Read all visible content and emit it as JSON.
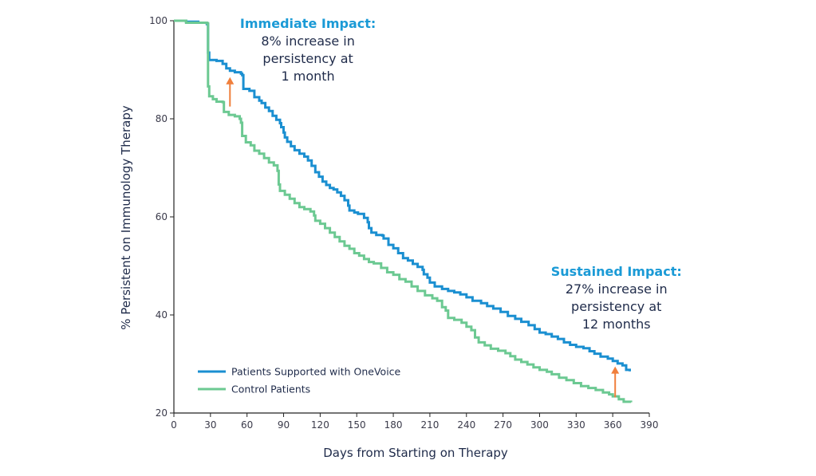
{
  "chart_data": {
    "type": "line",
    "title": "",
    "xlabel": "Days from Starting on Therapy",
    "ylabel": "% Persistent on Immunology Therapy",
    "xlim": [
      0,
      390
    ],
    "ylim": [
      20,
      100
    ],
    "xticks": [
      0,
      30,
      60,
      90,
      120,
      150,
      180,
      210,
      240,
      270,
      300,
      330,
      360,
      390
    ],
    "yticks": [
      20,
      40,
      60,
      80,
      100
    ],
    "grid": false,
    "legend_position": "bottom-left",
    "series": [
      {
        "name": "Patients Supported with OneVoice",
        "color": "#1a8fd1",
        "step": true,
        "points": [
          [
            0,
            100
          ],
          [
            10,
            99.8
          ],
          [
            20,
            99.6
          ],
          [
            27,
            99.3
          ],
          [
            28,
            93.5
          ],
          [
            29,
            92
          ],
          [
            35,
            91.8
          ],
          [
            40,
            91.2
          ],
          [
            43,
            90.3
          ],
          [
            46,
            89.8
          ],
          [
            50,
            89.5
          ],
          [
            55,
            89.2
          ],
          [
            56,
            88.9
          ],
          [
            57,
            86.1
          ],
          [
            62,
            85.7
          ],
          [
            66,
            84.4
          ],
          [
            70,
            83.7
          ],
          [
            72,
            83.2
          ],
          [
            75,
            82.3
          ],
          [
            78,
            81.6
          ],
          [
            81,
            80.6
          ],
          [
            84,
            79.8
          ],
          [
            87,
            79.1
          ],
          [
            88,
            78.3
          ],
          [
            90,
            77.2
          ],
          [
            91,
            76.2
          ],
          [
            93,
            75.3
          ],
          [
            96,
            74.4
          ],
          [
            99,
            73.6
          ],
          [
            103,
            72.9
          ],
          [
            107,
            72.3
          ],
          [
            110,
            71.5
          ],
          [
            113,
            70.4
          ],
          [
            116,
            69.1
          ],
          [
            119,
            68.2
          ],
          [
            122,
            67.2
          ],
          [
            125,
            66.5
          ],
          [
            128,
            65.9
          ],
          [
            131,
            65.6
          ],
          [
            134,
            65
          ],
          [
            137,
            64.3
          ],
          [
            140,
            63.4
          ],
          [
            143,
            62.3
          ],
          [
            144,
            61.3
          ],
          [
            148,
            60.9
          ],
          [
            151,
            60.6
          ],
          [
            156,
            59.8
          ],
          [
            159,
            58.9
          ],
          [
            160,
            57.7
          ],
          [
            162,
            56.8
          ],
          [
            166,
            56.3
          ],
          [
            171,
            56.2
          ],
          [
            172,
            55.6
          ],
          [
            176,
            54.3
          ],
          [
            180,
            53.6
          ],
          [
            184,
            52.6
          ],
          [
            188,
            51.6
          ],
          [
            192,
            51.1
          ],
          [
            196,
            50.4
          ],
          [
            200,
            49.8
          ],
          [
            204,
            49.2
          ],
          [
            205,
            48.3
          ],
          [
            208,
            47.6
          ],
          [
            210,
            46.6
          ],
          [
            214,
            45.8
          ],
          [
            220,
            45.3
          ],
          [
            225,
            44.9
          ],
          [
            230,
            44.6
          ],
          [
            235,
            44.2
          ],
          [
            240,
            43.6
          ],
          [
            245,
            42.9
          ],
          [
            252,
            42.4
          ],
          [
            257,
            41.8
          ],
          [
            262,
            41.3
          ],
          [
            268,
            40.6
          ],
          [
            274,
            39.8
          ],
          [
            280,
            39.2
          ],
          [
            285,
            38.6
          ],
          [
            291,
            37.9
          ],
          [
            296,
            37.1
          ],
          [
            300,
            36.4
          ],
          [
            305,
            36.1
          ],
          [
            310,
            35.6
          ],
          [
            315,
            35.1
          ],
          [
            320,
            34.4
          ],
          [
            325,
            33.9
          ],
          [
            330,
            33.5
          ],
          [
            336,
            33.2
          ],
          [
            341,
            32.6
          ],
          [
            345,
            32.1
          ],
          [
            350,
            31.5
          ],
          [
            356,
            31.1
          ],
          [
            360,
            30.6
          ],
          [
            364,
            30.1
          ],
          [
            368,
            29.7
          ],
          [
            371,
            28.8
          ],
          [
            374,
            28.5
          ]
        ]
      },
      {
        "name": "Control Patients",
        "color": "#6cc992",
        "step": true,
        "points": [
          [
            0,
            100
          ],
          [
            10,
            99.6
          ],
          [
            27,
            99.5
          ],
          [
            28,
            86.6
          ],
          [
            29,
            84.6
          ],
          [
            32,
            84
          ],
          [
            35,
            83.5
          ],
          [
            40,
            83.4
          ],
          [
            41,
            81.4
          ],
          [
            45,
            80.8
          ],
          [
            50,
            80.5
          ],
          [
            54,
            80
          ],
          [
            55,
            79.2
          ],
          [
            56,
            76.5
          ],
          [
            59,
            75.2
          ],
          [
            63,
            74.6
          ],
          [
            66,
            73.5
          ],
          [
            70,
            72.9
          ],
          [
            74,
            72
          ],
          [
            78,
            71.1
          ],
          [
            82,
            70.5
          ],
          [
            85,
            69.4
          ],
          [
            86,
            66.6
          ],
          [
            87,
            65.3
          ],
          [
            91,
            64.5
          ],
          [
            95,
            63.7
          ],
          [
            99,
            62.8
          ],
          [
            103,
            62
          ],
          [
            107,
            61.6
          ],
          [
            112,
            61.1
          ],
          [
            115,
            60.3
          ],
          [
            116,
            59.2
          ],
          [
            120,
            58.6
          ],
          [
            124,
            57.7
          ],
          [
            128,
            56.8
          ],
          [
            132,
            55.9
          ],
          [
            136,
            55
          ],
          [
            140,
            54.1
          ],
          [
            144,
            53.5
          ],
          [
            148,
            52.6
          ],
          [
            152,
            52.1
          ],
          [
            156,
            51.4
          ],
          [
            160,
            50.8
          ],
          [
            164,
            50.5
          ],
          [
            170,
            49.6
          ],
          [
            175,
            48.7
          ],
          [
            180,
            48.2
          ],
          [
            185,
            47.3
          ],
          [
            190,
            46.8
          ],
          [
            195,
            45.8
          ],
          [
            200,
            44.9
          ],
          [
            206,
            44
          ],
          [
            212,
            43.4
          ],
          [
            216,
            42.9
          ],
          [
            220,
            41.6
          ],
          [
            223,
            40.9
          ],
          [
            225,
            39.4
          ],
          [
            230,
            39
          ],
          [
            236,
            38.4
          ],
          [
            240,
            37.6
          ],
          [
            244,
            36.9
          ],
          [
            247,
            35.4
          ],
          [
            250,
            34.4
          ],
          [
            255,
            33.8
          ],
          [
            260,
            33.1
          ],
          [
            266,
            32.7
          ],
          [
            272,
            32.2
          ],
          [
            276,
            31.6
          ],
          [
            280,
            30.9
          ],
          [
            285,
            30.4
          ],
          [
            290,
            29.9
          ],
          [
            295,
            29.3
          ],
          [
            300,
            28.8
          ],
          [
            306,
            28.4
          ],
          [
            310,
            27.9
          ],
          [
            316,
            27.2
          ],
          [
            322,
            26.7
          ],
          [
            328,
            26.1
          ],
          [
            334,
            25.5
          ],
          [
            340,
            25.1
          ],
          [
            346,
            24.7
          ],
          [
            352,
            24.2
          ],
          [
            357,
            23.8
          ],
          [
            360,
            23.4
          ],
          [
            365,
            22.8
          ],
          [
            369,
            22.3
          ],
          [
            375,
            22.2
          ]
        ]
      }
    ],
    "annotations": [
      {
        "title": "Immediate Impact:",
        "lines": [
          "8% increase in",
          "persistency at",
          "1 month"
        ],
        "arrow_x": 46,
        "arrow_y_from": 82.5,
        "arrow_y_to": 88.5,
        "text_x": 110,
        "text_y": 98.5
      },
      {
        "title": "Sustained Impact:",
        "lines": [
          "27% increase in",
          "persistency at",
          "12 months"
        ],
        "arrow_x": 362,
        "arrow_y_from": 23.2,
        "arrow_y_to": 29.5,
        "text_x": 363,
        "text_y": 48
      }
    ],
    "arrow_color": "#f07f3c"
  }
}
